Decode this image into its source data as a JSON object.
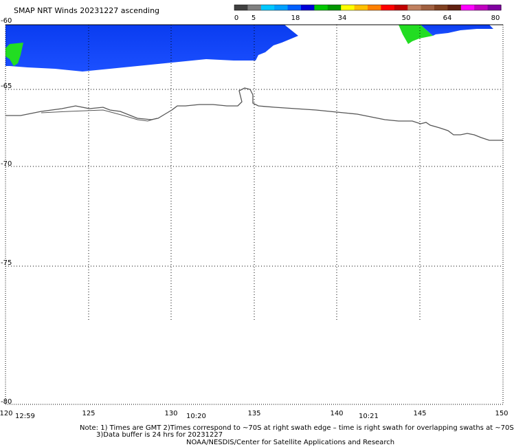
{
  "title": "SMAP NRT Winds 20231227 ascending",
  "scale": {
    "labels": [
      "0",
      "5",
      "18",
      "34",
      "50",
      "64",
      "80"
    ],
    "colors": [
      "#404040",
      "#808080",
      "#00c8ff",
      "#00a0ff",
      "#0060ff",
      "#0000d8",
      "#00c800",
      "#009600",
      "#ffff00",
      "#ffc000",
      "#ff8000",
      "#ff0000",
      "#c00000",
      "#c08060",
      "#a06040",
      "#804020",
      "#602010",
      "#ff00ff",
      "#c000c0",
      "#8000a0"
    ]
  },
  "latitudes": [
    "-60",
    "-65",
    "-70",
    "-75",
    "-80"
  ],
  "longitudes": [
    "120",
    "125",
    "130",
    "135",
    "140",
    "145",
    "150"
  ],
  "times": [
    "12:59",
    "10:20",
    "10:21"
  ],
  "note_line1": "Note: 1) Times are GMT 2)Times correspond to ~70S at right swath edge – time is right swath for overlapping swaths at ~70S",
  "note_line2": "3)Data buffer is 24 hrs for 20231227",
  "credit": "NOAA/NESDIS/Center for Satellite Applications and Research",
  "map_data": {
    "lat_range": [
      -80,
      -60
    ],
    "lon_range": [
      120,
      150
    ],
    "wind_colors": {
      "blue": "#1444f0",
      "green": "#22dd22"
    }
  }
}
